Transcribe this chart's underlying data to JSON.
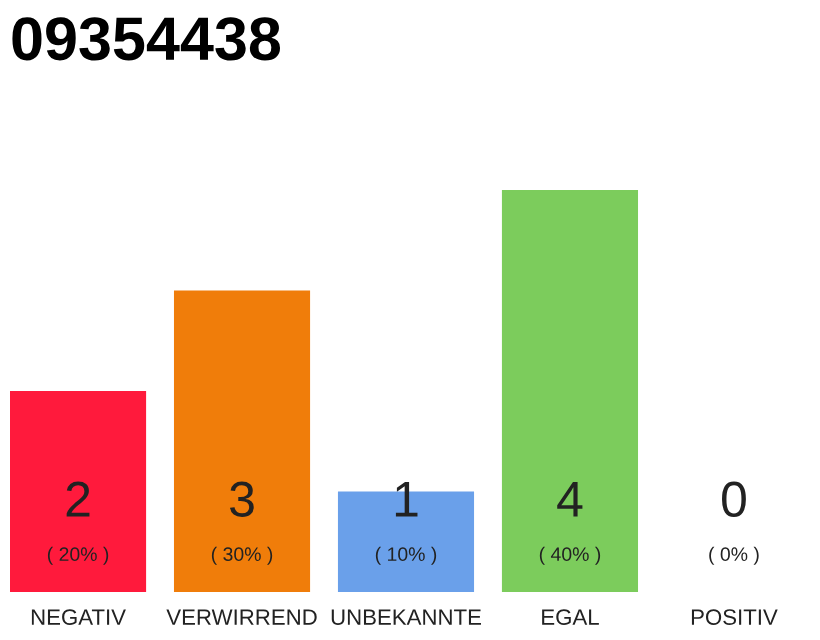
{
  "chart_data": {
    "type": "bar",
    "title": "09354438",
    "categories": [
      "NEGATIV",
      "VERWIRREND",
      "UNBEKANNTE",
      "EGAL",
      "POSITIV"
    ],
    "values": [
      2,
      3,
      1,
      4,
      0
    ],
    "colors": [
      "#ff1a3c",
      "#f07d0a",
      "#6aa0ea",
      "#7ccc5c",
      "#cccccc"
    ],
    "value_labels": [
      "2\n( 20% )",
      "3\n( 30% )",
      "1\n( 10% )",
      "4\n( 40% )",
      "0\n( 0% )"
    ],
    "ylim": [
      0,
      4
    ],
    "tick_labels": "x",
    "grid": false,
    "legend": false
  }
}
